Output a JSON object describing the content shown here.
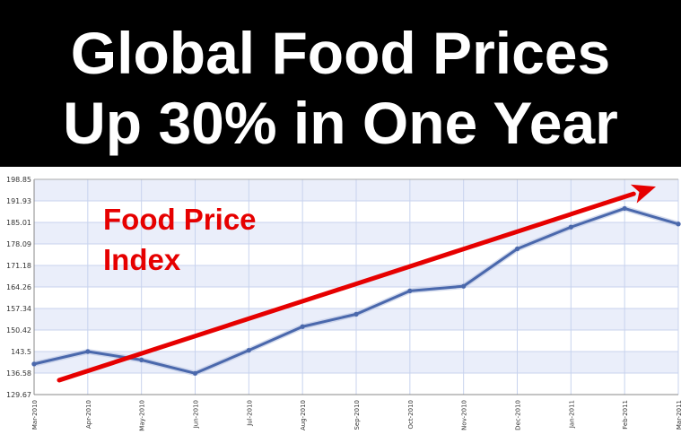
{
  "banner": {
    "title_line1": "Global Food Prices",
    "title_line2": "Up 30% in One Year"
  },
  "chart_data": {
    "type": "line",
    "title": "Global Food Prices Up 30% in One Year",
    "annotation_line1": "Food Price",
    "annotation_line2": "Index",
    "categories": [
      "Mar-2010",
      "Apr-2010",
      "May-2010",
      "Jun-2010",
      "Jul-2010",
      "Aug-2010",
      "Sep-2010",
      "Oct-2010",
      "Nov-2010",
      "Dec-2010",
      "Jan-2011",
      "Feb-2011",
      "Mar-2011"
    ],
    "series": [
      {
        "values": [
          139.5,
          143.5,
          140.8,
          136.5,
          143.9,
          151.5,
          155.5,
          163.0,
          164.5,
          176.5,
          183.5,
          189.5,
          184.5
        ]
      }
    ],
    "y_ticks": [
      "129.67",
      "136.58",
      "143.5",
      "150.42",
      "157.34",
      "164.26",
      "171.18",
      "178.09",
      "185.01",
      "191.93",
      "198.85"
    ],
    "ylim": [
      129.67,
      198.85
    ],
    "grid": true,
    "trend_arrow": {
      "from": [
        "Mar-2010",
        134.3
      ],
      "to": [
        "Mar-2011",
        196.5
      ]
    },
    "colors": {
      "line": "#4a68ac",
      "arrow": "#e60000",
      "band": "#eaeefa",
      "grid": "#c8d3ee"
    }
  }
}
